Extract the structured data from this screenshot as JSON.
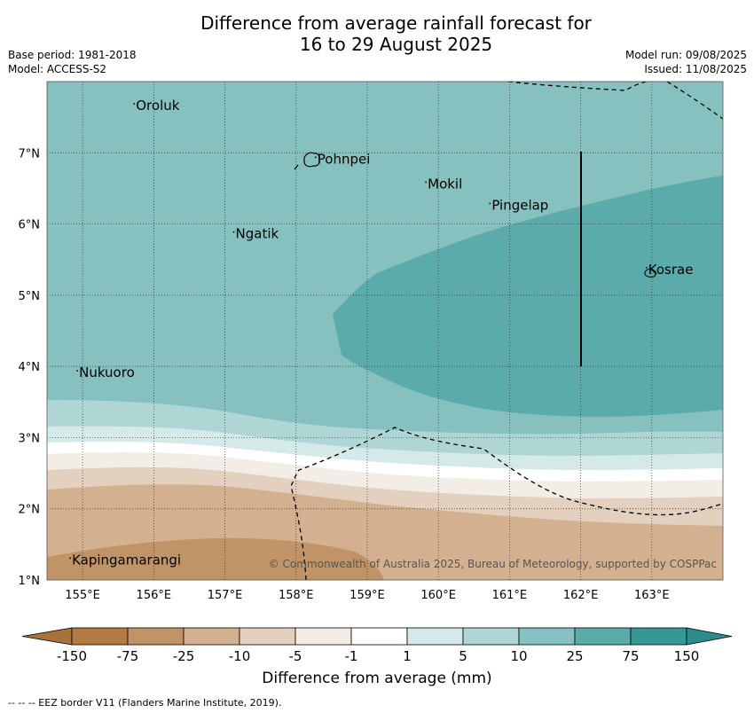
{
  "title_line1": "Difference from average rainfall forecast for",
  "title_line2": "16 to 29 August 2025",
  "meta": {
    "base_period": "Base period: 1981-2018",
    "model": "Model: ACCESS-S2",
    "model_run": "Model run: 09/08/2025",
    "issued": "Issued: 11/08/2025"
  },
  "map": {
    "lon_range": [
      154.5,
      164.0
    ],
    "lat_range": [
      1.0,
      8.0
    ],
    "lon_ticks": [
      {
        "value": 155,
        "label": "155°E"
      },
      {
        "value": 156,
        "label": "156°E"
      },
      {
        "value": 157,
        "label": "157°E"
      },
      {
        "value": 158,
        "label": "158°E"
      },
      {
        "value": 159,
        "label": "159°E"
      },
      {
        "value": 160,
        "label": "160°E"
      },
      {
        "value": 161,
        "label": "161°E"
      },
      {
        "value": 162,
        "label": "162°E"
      },
      {
        "value": 163,
        "label": "163°E"
      }
    ],
    "lat_ticks": [
      {
        "value": 1,
        "label": "1°N"
      },
      {
        "value": 2,
        "label": "2°N"
      },
      {
        "value": 3,
        "label": "3°N"
      },
      {
        "value": 4,
        "label": "4°N"
      },
      {
        "value": 5,
        "label": "5°N"
      },
      {
        "value": 6,
        "label": "6°N"
      },
      {
        "value": 7,
        "label": "7°N"
      }
    ],
    "places": [
      {
        "name": "Oroluk",
        "lon": 155.75,
        "lat": 7.6
      },
      {
        "name": "Pohnpei",
        "lon": 158.3,
        "lat": 6.85
      },
      {
        "name": "Mokil",
        "lon": 159.85,
        "lat": 6.5
      },
      {
        "name": "Pingelap",
        "lon": 160.75,
        "lat": 6.2
      },
      {
        "name": "Ngatik",
        "lon": 157.15,
        "lat": 5.8
      },
      {
        "name": "Kosrae",
        "lon": 162.95,
        "lat": 5.3
      },
      {
        "name": "Nukuoro",
        "lon": 154.95,
        "lat": 3.85
      },
      {
        "name": "Kapingamarangi",
        "lon": 154.85,
        "lat": 1.22
      }
    ],
    "copyright": "© Commonwealth of Australia 2025, Bureau of Meteorology, supported by COSPPac"
  },
  "colorbar": {
    "title": "Difference from average (mm)",
    "tick_labels": [
      "-150",
      "-75",
      "-25",
      "-10",
      "-5",
      "-1",
      "1",
      "5",
      "10",
      "25",
      "75",
      "150"
    ],
    "colors": [
      "#a8733b",
      "#b27b44",
      "#c09467",
      "#d3b08f",
      "#e3d0be",
      "#f2ede6",
      "#ffffff",
      "#d5e9e8",
      "#afd6d5",
      "#86c1bf",
      "#5aabaa",
      "#359896",
      "#2e8d8b"
    ]
  },
  "footer": "--  --  -- EEZ border V11 (Flanders Marine Institute, 2019)."
}
